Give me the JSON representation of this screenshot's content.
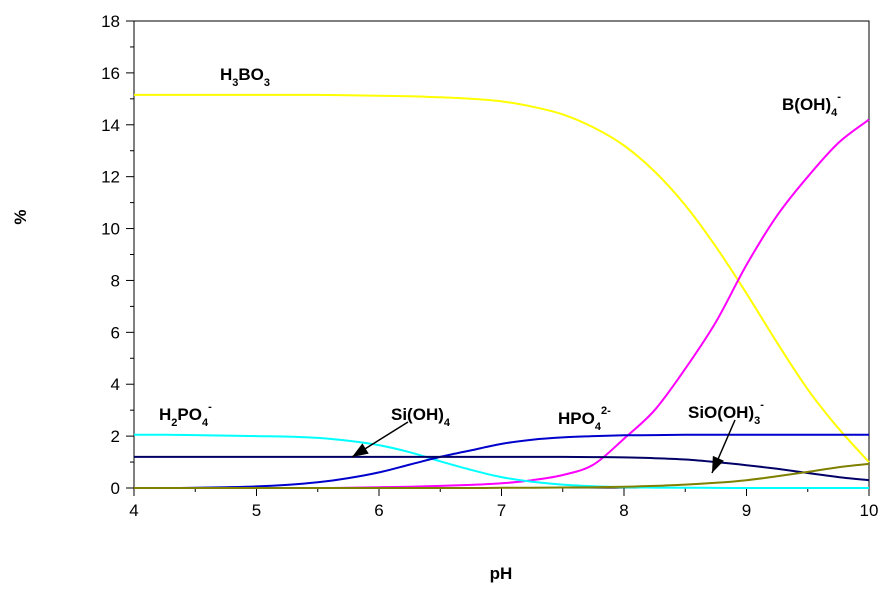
{
  "chart_data": {
    "type": "line",
    "title": "",
    "xlabel": "pH",
    "ylabel": "%",
    "xlim": [
      4,
      10
    ],
    "ylim": [
      0,
      18
    ],
    "xticks": [
      "4",
      "5",
      "6",
      "7",
      "8",
      "9",
      "10"
    ],
    "yticks": [
      "0",
      "2",
      "4",
      "6",
      "8",
      "10",
      "12",
      "14",
      "16",
      "18"
    ],
    "grid": false,
    "legend": "none",
    "x": [
      4.0,
      4.25,
      4.5,
      4.75,
      5.0,
      5.25,
      5.5,
      5.75,
      6.0,
      6.25,
      6.5,
      6.75,
      7.0,
      7.25,
      7.5,
      7.75,
      8.0,
      8.25,
      8.5,
      8.75,
      9.0,
      9.25,
      9.5,
      9.75,
      10.0
    ],
    "series": [
      {
        "key": "h3bo3",
        "color": "#ffff00",
        "values": [
          15.15,
          15.15,
          15.15,
          15.15,
          15.15,
          15.15,
          15.15,
          15.14,
          15.12,
          15.1,
          15.06,
          15.0,
          14.9,
          14.7,
          14.4,
          13.9,
          13.2,
          12.2,
          10.9,
          9.3,
          7.5,
          5.6,
          3.8,
          2.3,
          1.0
        ]
      },
      {
        "key": "boh4",
        "color": "#ff00ff",
        "values": [
          0.0,
          0.0,
          0.0,
          0.0,
          0.0,
          0.0,
          0.0,
          0.01,
          0.03,
          0.05,
          0.08,
          0.12,
          0.18,
          0.3,
          0.5,
          0.9,
          1.9,
          3.0,
          4.6,
          6.4,
          8.6,
          10.5,
          12.0,
          13.3,
          14.2
        ]
      },
      {
        "key": "h2po4",
        "color": "#00ffff",
        "values": [
          2.05,
          2.05,
          2.04,
          2.02,
          2.0,
          1.98,
          1.93,
          1.82,
          1.65,
          1.38,
          1.03,
          0.7,
          0.42,
          0.24,
          0.13,
          0.07,
          0.03,
          0.015,
          0.01,
          0.005,
          0.0,
          0.0,
          0.0,
          0.0,
          0.0
        ]
      },
      {
        "key": "hpo4",
        "color": "#0000cc",
        "values": [
          0.0,
          0.0,
          0.01,
          0.03,
          0.06,
          0.12,
          0.22,
          0.38,
          0.6,
          0.9,
          1.2,
          1.45,
          1.7,
          1.86,
          1.95,
          2.0,
          2.03,
          2.04,
          2.05,
          2.05,
          2.05,
          2.05,
          2.05,
          2.05,
          2.05
        ]
      },
      {
        "key": "sioh4",
        "color": "#000066",
        "values": [
          1.2,
          1.2,
          1.2,
          1.2,
          1.2,
          1.2,
          1.2,
          1.2,
          1.2,
          1.2,
          1.2,
          1.2,
          1.2,
          1.2,
          1.2,
          1.19,
          1.18,
          1.15,
          1.1,
          1.0,
          0.88,
          0.74,
          0.58,
          0.42,
          0.3
        ]
      },
      {
        "key": "sioh3",
        "color": "#808000",
        "values": [
          0.0,
          0.0,
          0.0,
          0.0,
          0.0,
          0.0,
          0.0,
          0.0,
          0.0,
          0.0,
          0.0,
          0.0,
          0.01,
          0.01,
          0.02,
          0.03,
          0.05,
          0.08,
          0.13,
          0.2,
          0.3,
          0.45,
          0.62,
          0.8,
          0.93
        ]
      }
    ],
    "annotations": {
      "h3bo3": {
        "parts": [
          [
            "H",
            ""
          ],
          [
            "3",
            "sub"
          ],
          [
            "BO",
            ""
          ],
          [
            "3",
            "sub"
          ]
        ]
      },
      "boh4": {
        "parts": [
          [
            "B(OH)",
            ""
          ],
          [
            "4",
            "sub"
          ],
          [
            "-",
            "sup"
          ]
        ]
      },
      "h2po4": {
        "parts": [
          [
            "H",
            ""
          ],
          [
            "2",
            "sub"
          ],
          [
            "PO",
            ""
          ],
          [
            "4",
            "sub"
          ],
          [
            "-",
            "sup"
          ]
        ]
      },
      "sioh4": {
        "parts": [
          [
            "Si(OH)",
            ""
          ],
          [
            "4",
            "sub"
          ]
        ]
      },
      "hpo4": {
        "parts": [
          [
            "HPO",
            ""
          ],
          [
            "4",
            "sub"
          ],
          [
            "2-",
            "sup"
          ]
        ]
      },
      "sioh3": {
        "parts": [
          [
            "SiO(OH)",
            ""
          ],
          [
            "3",
            "sub"
          ],
          [
            "-",
            "sup"
          ]
        ]
      }
    }
  }
}
